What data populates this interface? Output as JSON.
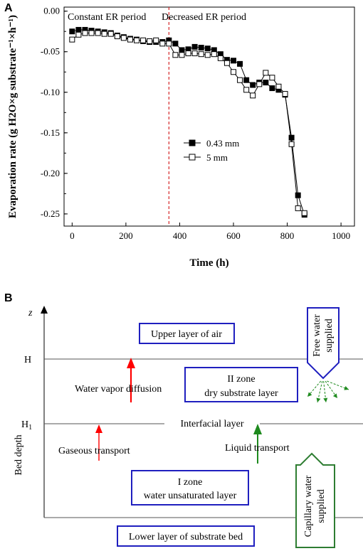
{
  "panel_a": {
    "letter": "A"
  },
  "panel_b": {
    "letter": "B",
    "z_label": "z",
    "y_axis_label": "Bed depth",
    "h_label": "H",
    "h1_label": "H",
    "h1_subscript": "1",
    "upper_air": "Upper layer of air",
    "zone2_line1": "II zone",
    "zone2_line2": "dry substrate layer",
    "interfacial": "Interfacial layer",
    "vapor_diffusion": "Water vapor diffusion",
    "gaseous": "Gaseous transport",
    "liquid": "Liquid transport",
    "zone1_line1": "I zone",
    "zone1_line2": "water unsaturated layer",
    "lower_layer": "Lower layer of substrate bed",
    "free_water_line1": "Free water",
    "free_water_line2": "supplied",
    "capillary_line1": "Capillary water",
    "capillary_line2": "supplied",
    "colors": {
      "vapor_arrow": "#ff0000",
      "liquid_arrow": "#1e8a1e",
      "box_border": "#1f1fbf",
      "capillary_border": "#2e7d32",
      "free_water_border": "#1f1fbf"
    }
  },
  "chart_data": {
    "type": "line",
    "title": "",
    "xlabel": "Time (h)",
    "ylabel": "Evaporation rate (g H2O×g substrate⁻¹×h⁻¹)",
    "xlim": [
      -30,
      1050
    ],
    "ylim": [
      -0.265,
      0.005
    ],
    "xticks": [
      0,
      200,
      400,
      600,
      800,
      1000
    ],
    "yticks": [
      0.0,
      -0.05,
      -0.1,
      -0.15,
      -0.2,
      -0.25
    ],
    "xtick_labels": [
      "0",
      "200",
      "400",
      "600",
      "800",
      "1000"
    ],
    "ytick_labels": [
      "0.00",
      "-0.05",
      "-0.10",
      "-0.15",
      "-0.20",
      "-0.25"
    ],
    "grid": false,
    "legend_position": "center",
    "regions": [
      {
        "label": "Constant ER period"
      },
      {
        "label": "Decreased ER period"
      }
    ],
    "divider_x": 360,
    "series": [
      {
        "name": "0.43 mm",
        "marker": "filled-square",
        "x": [
          0,
          24,
          48,
          72,
          96,
          120,
          144,
          168,
          192,
          216,
          240,
          264,
          288,
          312,
          336,
          360,
          384,
          408,
          432,
          456,
          480,
          504,
          528,
          552,
          576,
          600,
          624,
          648,
          672,
          696,
          720,
          744,
          768,
          792,
          816,
          840,
          864
        ],
        "y": [
          -0.025,
          -0.023,
          -0.023,
          -0.024,
          -0.025,
          -0.026,
          -0.027,
          -0.03,
          -0.032,
          -0.034,
          -0.035,
          -0.037,
          -0.038,
          -0.038,
          -0.038,
          -0.036,
          -0.04,
          -0.048,
          -0.047,
          -0.044,
          -0.045,
          -0.046,
          -0.048,
          -0.053,
          -0.06,
          -0.061,
          -0.065,
          -0.085,
          -0.091,
          -0.088,
          -0.088,
          -0.095,
          -0.097,
          -0.103,
          -0.156,
          -0.227,
          -0.251
        ]
      },
      {
        "name": "5 mm",
        "marker": "open-square",
        "x": [
          0,
          24,
          48,
          72,
          96,
          120,
          144,
          168,
          192,
          216,
          240,
          264,
          288,
          312,
          336,
          360,
          384,
          408,
          432,
          456,
          480,
          504,
          528,
          552,
          576,
          600,
          624,
          648,
          672,
          696,
          720,
          744,
          768,
          792,
          816,
          840,
          864
        ],
        "y": [
          -0.035,
          -0.029,
          -0.027,
          -0.027,
          -0.027,
          -0.028,
          -0.028,
          -0.031,
          -0.033,
          -0.035,
          -0.036,
          -0.036,
          -0.037,
          -0.036,
          -0.04,
          -0.04,
          -0.054,
          -0.054,
          -0.052,
          -0.052,
          -0.053,
          -0.054,
          -0.053,
          -0.058,
          -0.064,
          -0.075,
          -0.085,
          -0.097,
          -0.104,
          -0.09,
          -0.076,
          -0.082,
          -0.093,
          -0.102,
          -0.164,
          -0.243,
          -0.249
        ]
      }
    ]
  }
}
